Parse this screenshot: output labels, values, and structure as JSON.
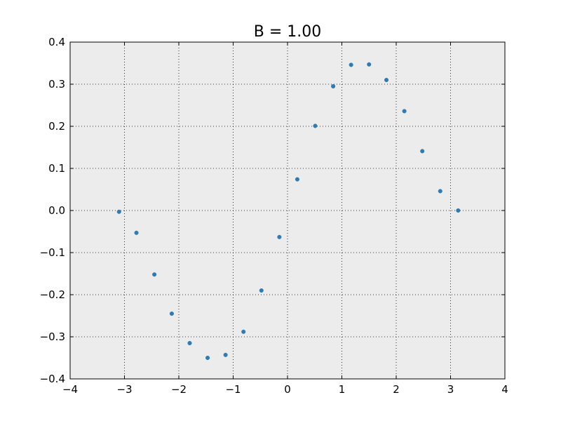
{
  "chart_data": {
    "type": "scatter",
    "title": "B = 1.00",
    "xlabel": "",
    "ylabel": "",
    "xlim": [
      -4,
      4
    ],
    "ylim": [
      -0.4,
      0.4
    ],
    "xticks": [
      -4,
      -3,
      -2,
      -1,
      0,
      1,
      2,
      3,
      4
    ],
    "yticks": [
      -0.4,
      -0.3,
      -0.2,
      -0.1,
      0.0,
      0.1,
      0.2,
      0.3,
      0.4
    ],
    "xtick_labels": [
      "−4",
      "−3",
      "−2",
      "−1",
      "0",
      "1",
      "2",
      "3",
      "4"
    ],
    "ytick_labels": [
      "−0.4",
      "−0.3",
      "−0.2",
      "−0.1",
      "0.0",
      "0.1",
      "0.2",
      "0.3",
      "0.4"
    ],
    "grid": true,
    "grid_style": "dotted",
    "plot_background": "#ececec",
    "marker_color": "#2e7bb5",
    "points": [
      {
        "x": -3.1,
        "y": -0.003
      },
      {
        "x": -2.78,
        "y": -0.053
      },
      {
        "x": -2.45,
        "y": -0.152
      },
      {
        "x": -2.13,
        "y": -0.245
      },
      {
        "x": -1.8,
        "y": -0.315
      },
      {
        "x": -1.47,
        "y": -0.35
      },
      {
        "x": -1.14,
        "y": -0.343
      },
      {
        "x": -0.81,
        "y": -0.288
      },
      {
        "x": -0.48,
        "y": -0.19
      },
      {
        "x": -0.15,
        "y": -0.063
      },
      {
        "x": 0.18,
        "y": 0.074
      },
      {
        "x": 0.51,
        "y": 0.201
      },
      {
        "x": 0.84,
        "y": 0.295
      },
      {
        "x": 1.17,
        "y": 0.346
      },
      {
        "x": 1.5,
        "y": 0.347
      },
      {
        "x": 1.82,
        "y": 0.31
      },
      {
        "x": 2.15,
        "y": 0.236
      },
      {
        "x": 2.48,
        "y": 0.141
      },
      {
        "x": 2.81,
        "y": 0.046
      },
      {
        "x": 3.14,
        "y": 0.0
      }
    ]
  }
}
